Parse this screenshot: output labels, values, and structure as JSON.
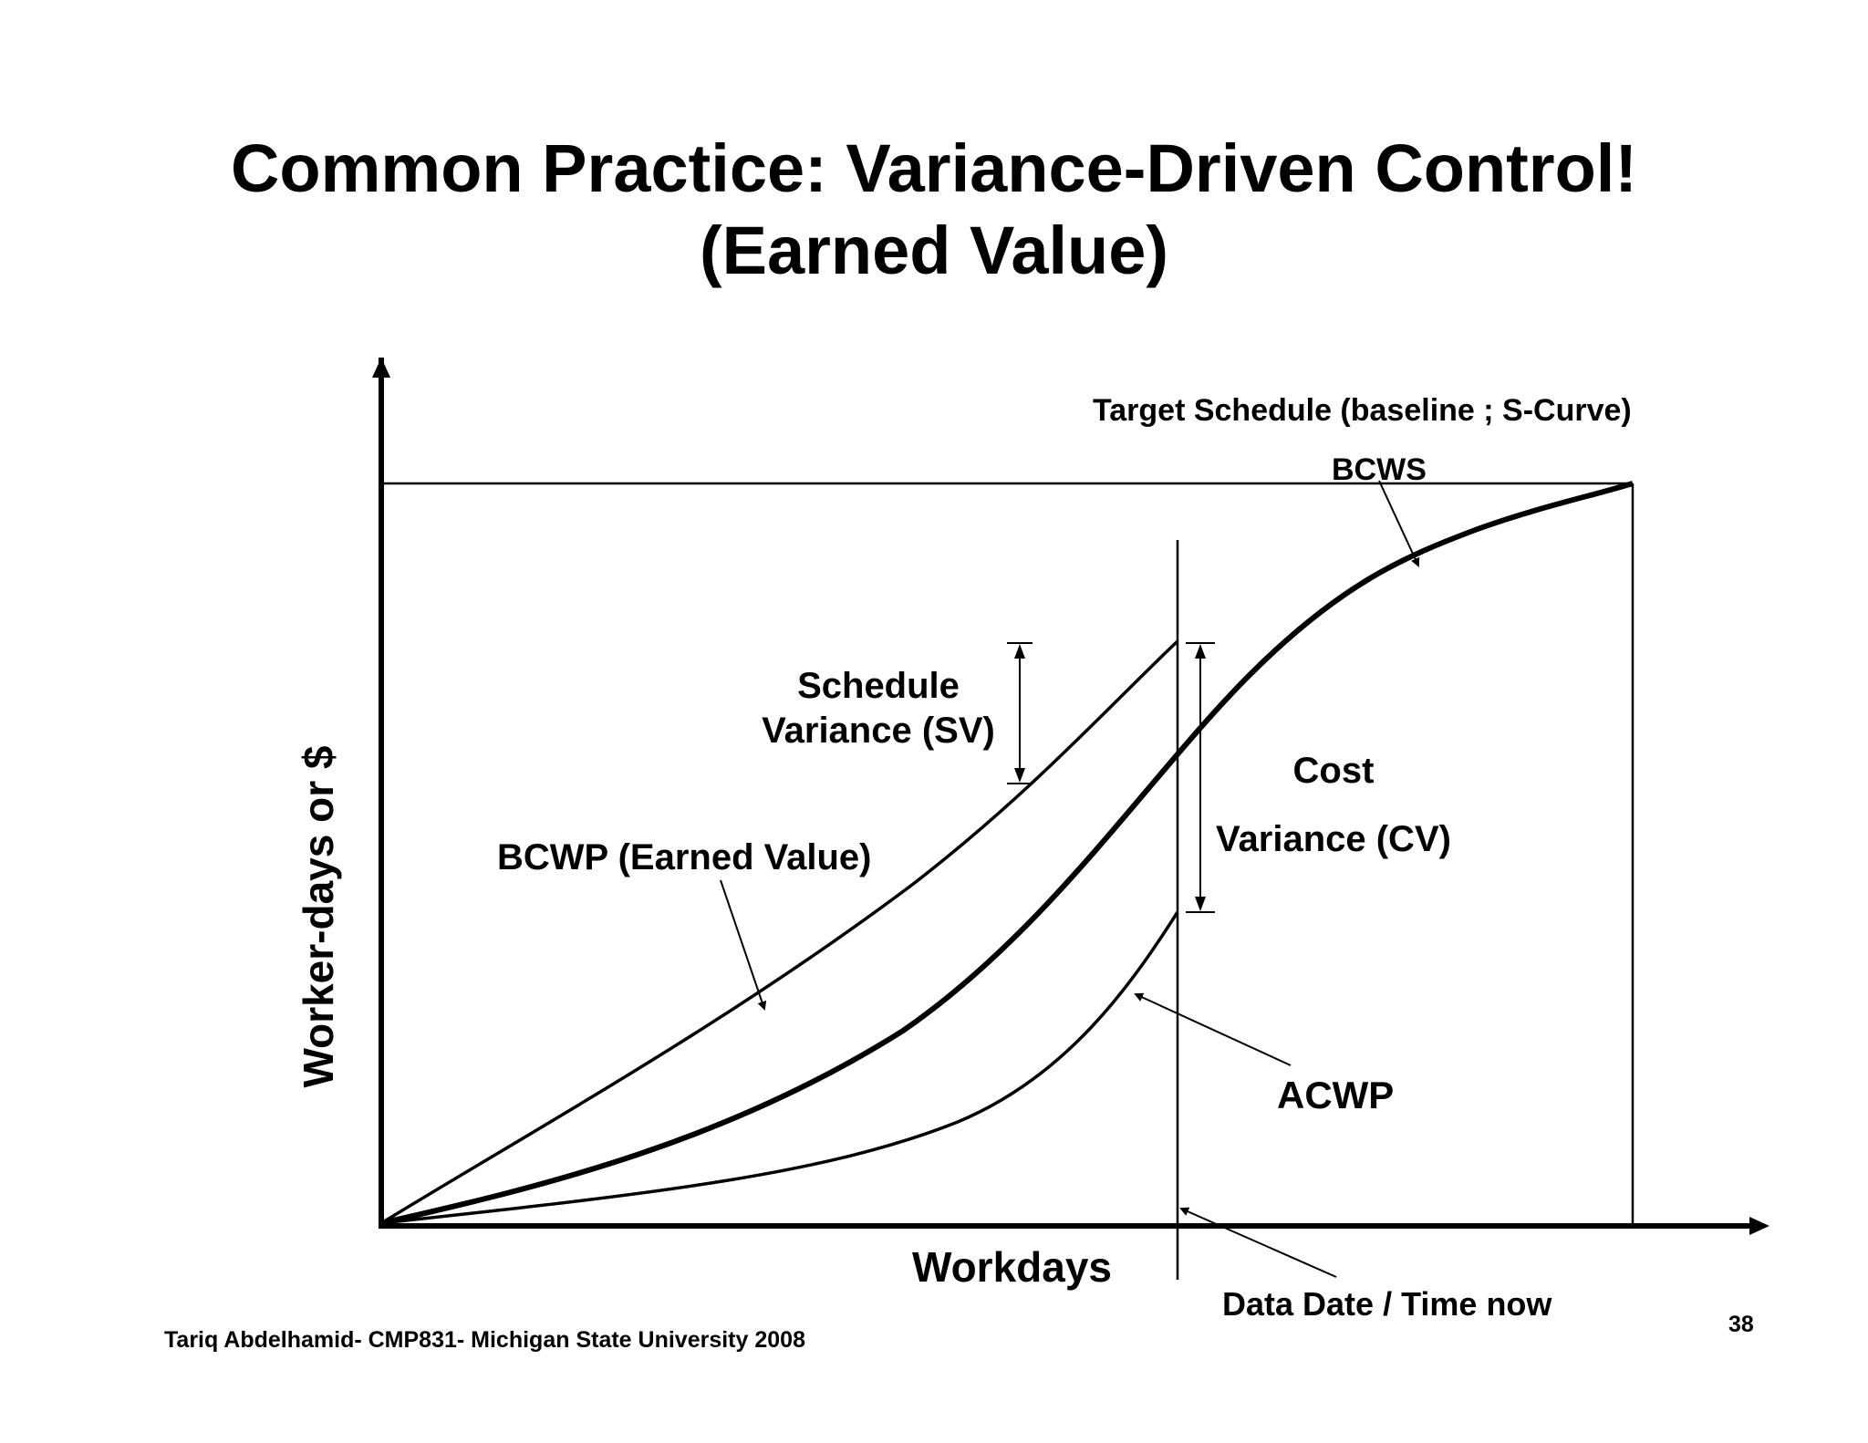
{
  "title": {
    "line1": "Common Practice: Variance-Driven Control!",
    "line2": "(Earned Value)"
  },
  "axes": {
    "xlabel": "Workdays",
    "ylabel": "Worker-days or $"
  },
  "labels": {
    "target_schedule": "Target Schedule (baseline ; S-Curve)",
    "bcws": "BCWS",
    "schedule_variance_line1": "Schedule",
    "schedule_variance_line2": "Variance (SV)",
    "cost_variance_line1": "Cost",
    "cost_variance_line2": "Variance (CV)",
    "bcwp": "BCWP (Earned Value)",
    "acwp": "ACWP",
    "data_date": "Data Date / Time now"
  },
  "footer": {
    "credit": "Tariq Abdelhamid- CMP831- Michigan State University 2008",
    "page_number": "38"
  }
}
